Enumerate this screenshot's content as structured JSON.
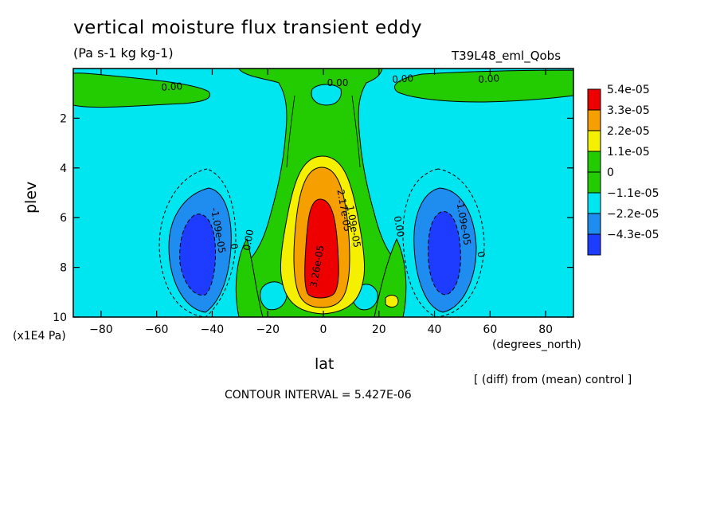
{
  "chart_data": {
    "type": "heatmap",
    "title": "vertical moisture flux transient eddy",
    "subtitle": "(Pa s-1 kg kg-1)",
    "model_label": "T39L48_eml_Qobs",
    "xlabel": "lat",
    "x_units": "(degrees_north)",
    "ylabel": "plev",
    "y_units": "(x1E4 Pa)",
    "xlim": [
      -90,
      90
    ],
    "ylim": [
      0,
      10
    ],
    "y_inverted": true,
    "x_ticks": [
      -80,
      -60,
      -40,
      -20,
      0,
      20,
      40,
      60,
      80
    ],
    "y_ticks": [
      2,
      4,
      6,
      8,
      10
    ],
    "colorbar": {
      "levels": [
        "5.4e-05",
        "3.3e-05",
        "2.2e-05",
        "1.1e-05",
        "0",
        "-1.1e-05",
        "-2.2e-05",
        "-4.3e-05"
      ],
      "colors": [
        "#ee0000",
        "#f5a000",
        "#f5f000",
        "#22cc00",
        "#22cc00",
        "#00e6f0",
        "#1f8cf0",
        "#1e3cff"
      ]
    },
    "contour_labels": [
      "0.00",
      "0.00",
      "0.00",
      "0.00",
      "0.00",
      "0.00",
      "2.17e-05",
      "3.26e-05",
      "1.09e-05",
      "-1.09e-05",
      "-1.09e-05",
      "0",
      "0"
    ],
    "annotations": {
      "diff_note": "[ (diff) from (mean) control ]",
      "contour_interval": "CONTOUR INTERVAL = 5.427E-06"
    }
  }
}
